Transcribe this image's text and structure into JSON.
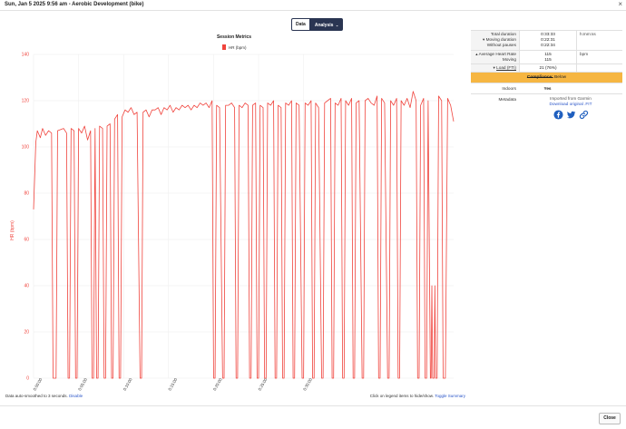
{
  "window": {
    "title": "Sun, Jan 5 2025 9:56 am - Aerobic Development (bike)",
    "close_symbol": "×"
  },
  "tabs": [
    {
      "label": "Data",
      "active": false
    },
    {
      "label": "Analysis",
      "active": true,
      "caret": "⌄"
    }
  ],
  "chart_data": {
    "type": "line",
    "title": "Session Metrics",
    "ylabel": "HR (bpm)",
    "xlabel": "",
    "ylim": [
      0,
      140
    ],
    "yticks": [
      0,
      20,
      40,
      60,
      80,
      100,
      120,
      140
    ],
    "xticks": [
      "0:00:00",
      "0:05:00",
      "0:10:00",
      "0:15:00",
      "0:20:00",
      "0:25:00",
      "0:30:00"
    ],
    "grid": true,
    "legend": {
      "position": "top-center",
      "entries": [
        "HR (bpm)"
      ]
    },
    "color": "#f0443d",
    "series": [
      {
        "name": "HR (bpm)",
        "points": [
          [
            0,
            73
          ],
          [
            15,
            102
          ],
          [
            25,
            107
          ],
          [
            45,
            104
          ],
          [
            60,
            108
          ],
          [
            80,
            105
          ],
          [
            100,
            107
          ],
          [
            120,
            106
          ],
          [
            130,
            0
          ],
          [
            150,
            0
          ],
          [
            160,
            107
          ],
          [
            200,
            108
          ],
          [
            220,
            106
          ],
          [
            230,
            0
          ],
          [
            240,
            0
          ],
          [
            250,
            108
          ],
          [
            270,
            107
          ],
          [
            280,
            0
          ],
          [
            290,
            0
          ],
          [
            300,
            108
          ],
          [
            320,
            106
          ],
          [
            340,
            109
          ],
          [
            360,
            103
          ],
          [
            380,
            107
          ],
          [
            390,
            0
          ],
          [
            400,
            0
          ],
          [
            410,
            108
          ],
          [
            420,
            0
          ],
          [
            430,
            0
          ],
          [
            440,
            109
          ],
          [
            460,
            108
          ],
          [
            470,
            0
          ],
          [
            480,
            0
          ],
          [
            490,
            109
          ],
          [
            510,
            110
          ],
          [
            520,
            0
          ],
          [
            530,
            0
          ],
          [
            540,
            112
          ],
          [
            560,
            114
          ],
          [
            570,
            0
          ],
          [
            580,
            0
          ],
          [
            590,
            113
          ],
          [
            610,
            116
          ],
          [
            630,
            115
          ],
          [
            650,
            117
          ],
          [
            670,
            114
          ],
          [
            690,
            115
          ],
          [
            710,
            0
          ],
          [
            720,
            0
          ],
          [
            730,
            115
          ],
          [
            750,
            116
          ],
          [
            770,
            113
          ],
          [
            790,
            116
          ],
          [
            810,
            116
          ],
          [
            830,
            117
          ],
          [
            850,
            114
          ],
          [
            870,
            117
          ],
          [
            890,
            116
          ],
          [
            910,
            118
          ],
          [
            930,
            115
          ],
          [
            950,
            117
          ],
          [
            970,
            116
          ],
          [
            990,
            118
          ],
          [
            1010,
            117
          ],
          [
            1030,
            118
          ],
          [
            1050,
            116
          ],
          [
            1070,
            118
          ],
          [
            1090,
            117
          ],
          [
            1110,
            119
          ],
          [
            1130,
            118
          ],
          [
            1150,
            119
          ],
          [
            1170,
            117
          ],
          [
            1190,
            120
          ],
          [
            1200,
            0
          ],
          [
            1210,
            0
          ],
          [
            1220,
            118
          ],
          [
            1240,
            117
          ],
          [
            1260,
            0
          ],
          [
            1270,
            0
          ],
          [
            1280,
            118
          ],
          [
            1300,
            118
          ],
          [
            1320,
            119
          ],
          [
            1340,
            117
          ],
          [
            1350,
            0
          ],
          [
            1360,
            0
          ],
          [
            1370,
            118
          ],
          [
            1390,
            117
          ],
          [
            1410,
            119
          ],
          [
            1430,
            118
          ],
          [
            1440,
            0
          ],
          [
            1450,
            0
          ],
          [
            1460,
            118
          ],
          [
            1480,
            119
          ],
          [
            1490,
            0
          ],
          [
            1500,
            0
          ],
          [
            1510,
            118
          ],
          [
            1530,
            117
          ],
          [
            1540,
            0
          ],
          [
            1550,
            0
          ],
          [
            1560,
            119
          ],
          [
            1580,
            118
          ],
          [
            1600,
            120
          ],
          [
            1610,
            0
          ],
          [
            1620,
            0
          ],
          [
            1630,
            118
          ],
          [
            1650,
            117
          ],
          [
            1660,
            0
          ],
          [
            1670,
            0
          ],
          [
            1680,
            119
          ],
          [
            1700,
            118
          ],
          [
            1720,
            120
          ],
          [
            1730,
            0
          ],
          [
            1740,
            0
          ],
          [
            1750,
            119
          ],
          [
            1770,
            118
          ],
          [
            1790,
            0
          ],
          [
            1800,
            0
          ],
          [
            1810,
            119
          ],
          [
            1830,
            118
          ],
          [
            1850,
            120
          ],
          [
            1860,
            0
          ],
          [
            1870,
            0
          ],
          [
            1880,
            119
          ],
          [
            1900,
            117
          ],
          [
            1920,
            0
          ],
          [
            1930,
            0
          ],
          [
            1940,
            119
          ],
          [
            1960,
            120
          ],
          [
            1980,
            121
          ],
          [
            1990,
            0
          ],
          [
            2000,
            0
          ],
          [
            2010,
            119
          ],
          [
            2030,
            118
          ],
          [
            2050,
            121
          ],
          [
            2060,
            0
          ],
          [
            2070,
            0
          ],
          [
            2080,
            120
          ],
          [
            2100,
            118
          ],
          [
            2120,
            121
          ],
          [
            2130,
            0
          ],
          [
            2140,
            0
          ],
          [
            2150,
            119
          ],
          [
            2170,
            120
          ],
          [
            2190,
            0
          ],
          [
            2200,
            0
          ],
          [
            2210,
            120
          ],
          [
            2230,
            121
          ],
          [
            2250,
            119
          ],
          [
            2270,
            118
          ],
          [
            2290,
            122
          ],
          [
            2300,
            0
          ],
          [
            2310,
            0
          ],
          [
            2320,
            121
          ],
          [
            2340,
            119
          ],
          [
            2360,
            0
          ],
          [
            2370,
            0
          ],
          [
            2380,
            120
          ],
          [
            2400,
            118
          ],
          [
            2420,
            121
          ],
          [
            2430,
            0
          ],
          [
            2440,
            0
          ],
          [
            2450,
            120
          ],
          [
            2470,
            118
          ],
          [
            2490,
            121
          ],
          [
            2510,
            117
          ],
          [
            2530,
            124
          ],
          [
            2550,
            120
          ],
          [
            2560,
            0
          ],
          [
            2570,
            0
          ],
          [
            2580,
            118
          ],
          [
            2600,
            121
          ],
          [
            2610,
            0
          ],
          [
            2620,
            0
          ],
          [
            2630,
            120
          ],
          [
            2640,
            40
          ],
          [
            2645,
            0
          ],
          [
            2650,
            0
          ],
          [
            2655,
            40
          ],
          [
            2660,
            0
          ],
          [
            2670,
            0
          ],
          [
            2675,
            40
          ],
          [
            2680,
            0
          ],
          [
            2690,
            0
          ],
          [
            2700,
            122
          ],
          [
            2720,
            120
          ],
          [
            2730,
            0
          ],
          [
            2745,
            0
          ],
          [
            2760,
            121
          ],
          [
            2780,
            118
          ],
          [
            2800,
            111
          ]
        ]
      }
    ],
    "x_max": 2800
  },
  "footnotes": {
    "left_text": "Data auto-smoothed to 3 seconds.",
    "left_link": "Disable",
    "right_text": "Click on legend items to hide/show.",
    "right_link": "Toggle Summary"
  },
  "summary": {
    "total_duration_label": "Total duration",
    "moving_duration_label": "Moving duration",
    "without_pauses_label": "Without pauses",
    "total_duration_value": "0:33:33",
    "moving_duration_value": "0:22:31",
    "without_pauses_value": "0:22:34",
    "duration_unit": "h:mm:ss",
    "avg_hr_label": "Average Heart Rate",
    "moving_label": "Moving",
    "avg_hr_value": "115",
    "moving_hr_value": "115",
    "hr_unit": "bpm",
    "load_label": "Load (FTI)",
    "load_value": "21 (76%)",
    "compliance_label": "Compliance:",
    "compliance_value": "Below",
    "compliance_color": "#f6b642",
    "indoors_label": "Indoors",
    "indoors_value": "Yes",
    "metadata_label": "Metadata",
    "imported_from": "Imported from Garmin",
    "download_link": "Download original .FIT",
    "share_icons": [
      "facebook-icon",
      "twitter-icon",
      "link-icon"
    ]
  },
  "close_button": "Close"
}
